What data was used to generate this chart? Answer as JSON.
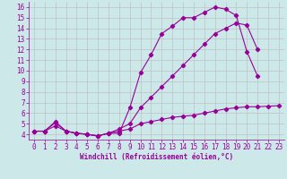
{
  "xlabel": "Windchill (Refroidissement éolien,°C)",
  "bg_color": "#cce8e8",
  "line_color": "#990099",
  "grid_color": "#bbbbbb",
  "xlim": [
    -0.5,
    23.5
  ],
  "ylim": [
    3.5,
    16.5
  ],
  "yticks": [
    4,
    5,
    6,
    7,
    8,
    9,
    10,
    11,
    12,
    13,
    14,
    15,
    16
  ],
  "xticks": [
    0,
    1,
    2,
    3,
    4,
    5,
    6,
    7,
    8,
    9,
    10,
    11,
    12,
    13,
    14,
    15,
    16,
    17,
    18,
    19,
    20,
    21,
    22,
    23
  ],
  "line1_x": [
    0,
    1,
    2,
    3,
    4,
    5,
    6,
    7,
    8,
    9,
    10,
    11,
    12,
    13,
    14,
    15,
    16,
    17,
    18,
    19,
    20,
    21
  ],
  "line1_y": [
    4.3,
    4.3,
    5.2,
    4.3,
    4.1,
    4.0,
    3.85,
    4.1,
    4.1,
    6.5,
    9.8,
    11.5,
    13.5,
    14.2,
    15.0,
    15.0,
    15.5,
    16.0,
    15.8,
    15.2,
    11.8,
    9.5
  ],
  "line2_x": [
    0,
    1,
    2,
    3,
    4,
    5,
    6,
    7,
    8,
    9,
    10,
    11,
    12,
    13,
    14,
    15,
    16,
    17,
    18,
    19,
    20,
    21
  ],
  "line2_y": [
    4.3,
    4.3,
    5.1,
    4.3,
    4.1,
    4.0,
    3.85,
    4.1,
    4.5,
    5.0,
    6.5,
    7.5,
    8.5,
    9.5,
    10.5,
    11.5,
    12.5,
    13.5,
    14.0,
    14.5,
    14.3,
    12.0
  ],
  "line3_x": [
    0,
    1,
    2,
    3,
    4,
    5,
    6,
    7,
    8,
    9,
    10,
    11,
    12,
    13,
    14,
    15,
    16,
    17,
    18,
    19,
    20,
    21,
    22,
    23
  ],
  "line3_y": [
    4.3,
    4.3,
    4.8,
    4.3,
    4.1,
    4.0,
    3.85,
    4.1,
    4.3,
    4.5,
    5.0,
    5.2,
    5.4,
    5.6,
    5.7,
    5.8,
    6.0,
    6.2,
    6.4,
    6.5,
    6.6,
    6.6,
    6.65,
    6.7
  ],
  "tick_color": "#990099",
  "tick_fontsize": 5.5,
  "xlabel_fontsize": 5.5,
  "marker_size": 2.2,
  "linewidth": 0.8
}
